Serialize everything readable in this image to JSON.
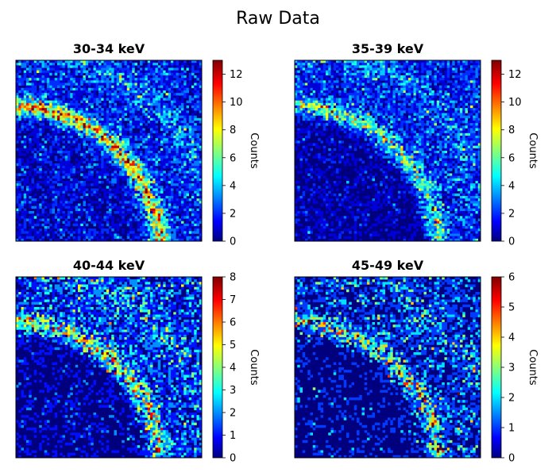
{
  "figure": {
    "title": "Raw Data"
  },
  "colormap": {
    "name": "jet",
    "stops": [
      "#00007f",
      "#0000ff",
      "#00ffff",
      "#ffff00",
      "#ff0000",
      "#7f0000"
    ]
  },
  "chart_data": [
    {
      "type": "heatmap",
      "title": "30-34 keV",
      "grid_size": 72,
      "vmin": 0,
      "vmax": 13,
      "colorbar": {
        "label": "Counts",
        "ticks": [
          0,
          2,
          4,
          6,
          8,
          10,
          12
        ]
      },
      "ring": {
        "arc_strength": 7.0,
        "background_mean": 1.6,
        "inner_mean": 1.0
      }
    },
    {
      "type": "heatmap",
      "title": "35-39 keV",
      "grid_size": 72,
      "vmin": 0,
      "vmax": 13,
      "colorbar": {
        "label": "Counts",
        "ticks": [
          0,
          2,
          4,
          6,
          8,
          10,
          12
        ]
      },
      "ring": {
        "arc_strength": 4.5,
        "background_mean": 1.8,
        "inner_mean": 0.5
      }
    },
    {
      "type": "heatmap",
      "title": "40-44 keV",
      "grid_size": 72,
      "vmin": 0,
      "vmax": 8,
      "colorbar": {
        "label": "Counts",
        "ticks": [
          0,
          1,
          2,
          3,
          4,
          5,
          6,
          7,
          8
        ]
      },
      "ring": {
        "arc_strength": 3.5,
        "background_mean": 1.1,
        "inner_mean": 0.3
      }
    },
    {
      "type": "heatmap",
      "title": "45-49 keV",
      "grid_size": 72,
      "vmin": 0,
      "vmax": 6,
      "colorbar": {
        "label": "Counts",
        "ticks": [
          0,
          1,
          2,
          3,
          4,
          5,
          6
        ]
      },
      "ring": {
        "arc_strength": 2.2,
        "background_mean": 0.6,
        "inner_mean": 0.2
      }
    }
  ]
}
